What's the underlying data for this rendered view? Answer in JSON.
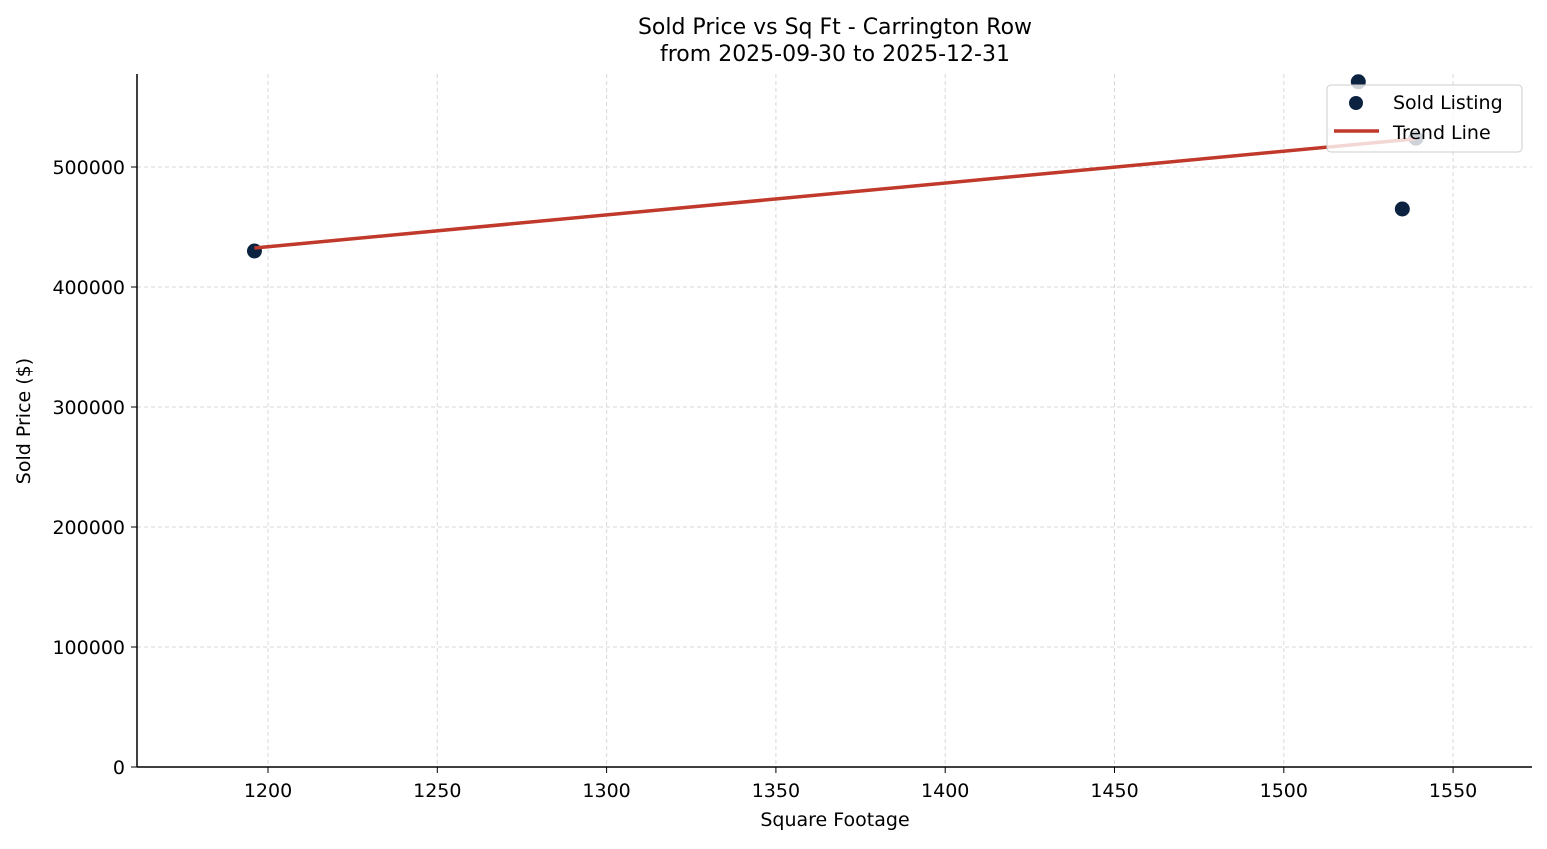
{
  "chart_data": {
    "type": "scatter",
    "title": "Sold Price vs Sq Ft - Carrington Row",
    "subtitle": "from 2025-09-30 to 2025-12-31",
    "xlabel": "Square Footage",
    "ylabel": "Sold Price ($)",
    "xlim": [
      1161,
      1573
    ],
    "ylim": [
      0,
      580000
    ],
    "xticks": [
      1200,
      1250,
      1300,
      1350,
      1400,
      1450,
      1500,
      1550
    ],
    "yticks": [
      0,
      100000,
      200000,
      300000,
      400000,
      500000
    ],
    "grid": true,
    "legend_position": "top-right",
    "series": [
      {
        "name": "Sold Listing",
        "kind": "scatter",
        "color": "#0b2341",
        "points": [
          [
            1196,
            430000
          ],
          [
            1522,
            571000
          ],
          [
            1535,
            465000
          ],
          [
            1539,
            524000
          ]
        ]
      },
      {
        "name": "Trend Line",
        "kind": "line",
        "color": "#c0392b",
        "points": [
          [
            1196,
            432500
          ],
          [
            1539,
            523500
          ]
        ]
      }
    ]
  }
}
